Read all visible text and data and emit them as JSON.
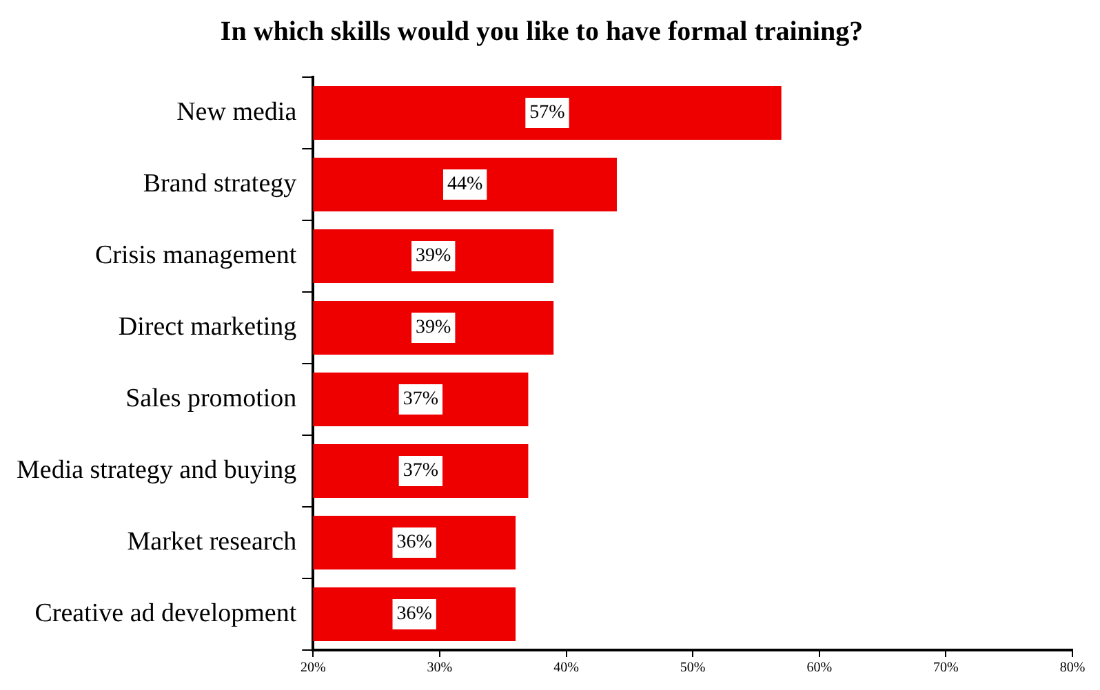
{
  "chart_data": {
    "type": "bar",
    "orientation": "horizontal",
    "title": "In which skills would you like to have formal training?",
    "categories": [
      "New media",
      "Brand strategy",
      "Crisis management",
      "Direct marketing",
      "Sales promotion",
      "Media strategy and buying",
      "Market research",
      "Creative ad development"
    ],
    "values": [
      57,
      44,
      39,
      39,
      37,
      37,
      36,
      36
    ],
    "value_labels": [
      "57%",
      "44%",
      "39%",
      "39%",
      "37%",
      "37%",
      "36%",
      "36%"
    ],
    "color": "#ee0000",
    "xlim": [
      20,
      80
    ],
    "xticks": [
      {
        "value": 20,
        "label": "20%"
      },
      {
        "value": 30,
        "label": "30%"
      },
      {
        "value": 40,
        "label": "40%"
      },
      {
        "value": 50,
        "label": "50%"
      },
      {
        "value": 60,
        "label": "60%"
      },
      {
        "value": 70,
        "label": "70%"
      },
      {
        "value": 80,
        "label": "80%"
      }
    ],
    "grid": false,
    "legend": false
  }
}
